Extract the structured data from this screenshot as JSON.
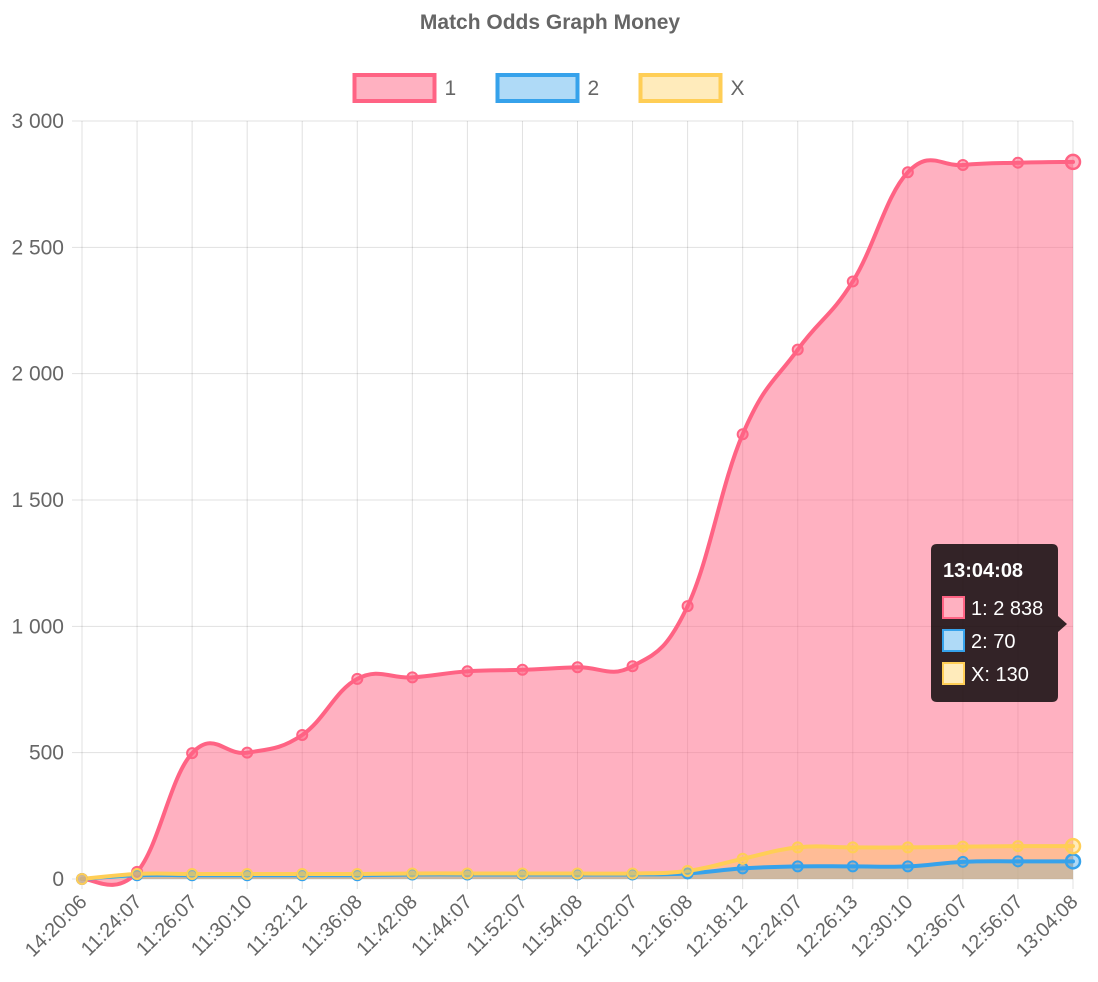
{
  "chart_data": {
    "type": "area",
    "title": "Match Odds Graph Money",
    "legend_position": "top",
    "grid": true,
    "ylim": [
      0,
      3000
    ],
    "y_ticks": [
      0,
      500,
      1000,
      1500,
      2000,
      2500,
      3000
    ],
    "y_tick_labels": [
      "0",
      "500",
      "1 000",
      "1 500",
      "2 000",
      "2 500",
      "3 000"
    ],
    "categories": [
      "14:20:06",
      "11:24:07",
      "11:26:07",
      "11:30:10",
      "11:32:12",
      "11:36:08",
      "11:42:08",
      "11:44:07",
      "11:52:07",
      "11:54:08",
      "12:02:07",
      "12:16:08",
      "12:18:12",
      "12:24:07",
      "12:26:13",
      "12:30:10",
      "12:36:07",
      "12:56:07",
      "13:04:08"
    ],
    "series": [
      {
        "name": "1",
        "border_color": "#ff6384",
        "fill_color": "rgba(255,99,132,0.5)",
        "values": [
          0,
          28,
          498,
          500,
          570,
          792,
          798,
          822,
          828,
          838,
          842,
          1080,
          1760,
          2095,
          2365,
          2797,
          2826,
          2835,
          2838
        ]
      },
      {
        "name": "2",
        "border_color": "#36a2eb",
        "fill_color": "rgba(54,162,235,0.4)",
        "values": [
          0,
          15,
          15,
          15,
          15,
          15,
          18,
          18,
          18,
          18,
          18,
          22,
          42,
          50,
          50,
          50,
          68,
          70,
          70
        ]
      },
      {
        "name": "X",
        "border_color": "#ffce56",
        "fill_color": "rgba(255,206,86,0.4)",
        "values": [
          0,
          20,
          20,
          20,
          20,
          20,
          22,
          22,
          22,
          22,
          22,
          32,
          80,
          125,
          125,
          125,
          128,
          130,
          130
        ]
      }
    ],
    "tooltip": {
      "title": "13:04:08",
      "lines": [
        "1: 2 838",
        "2: 70",
        "X: 130"
      ]
    }
  }
}
